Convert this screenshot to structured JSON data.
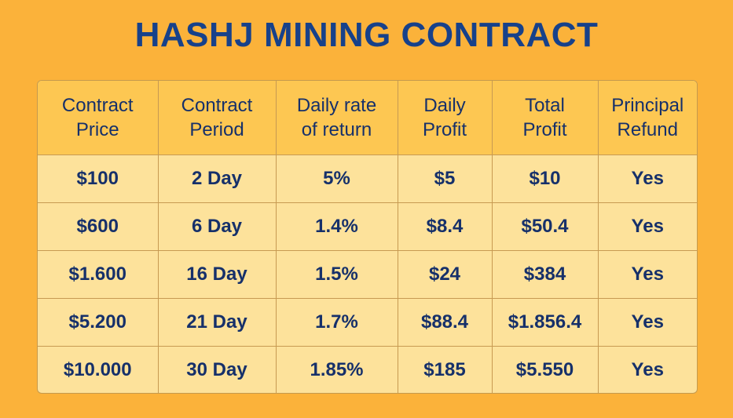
{
  "title": "HASHJ MINING CONTRACT",
  "colors": {
    "background": "#fbb23a",
    "header_row": "#fdc752",
    "body_rows": "#fde29b",
    "text": "#16306a",
    "title": "#17418a"
  },
  "table": {
    "headers": [
      [
        "Contract",
        "Price"
      ],
      [
        "Contract",
        "Period"
      ],
      [
        "Daily rate",
        "of return"
      ],
      [
        "Daily",
        "Profit"
      ],
      [
        "Total",
        "Profit"
      ],
      [
        "Principal",
        "Refund"
      ]
    ],
    "rows": [
      [
        "$100",
        "2 Day",
        "5%",
        "$5",
        "$10",
        "Yes"
      ],
      [
        "$600",
        "6 Day",
        "1.4%",
        "$8.4",
        "$50.4",
        "Yes"
      ],
      [
        "$1.600",
        "16 Day",
        "1.5%",
        "$24",
        "$384",
        "Yes"
      ],
      [
        "$5.200",
        "21 Day",
        "1.7%",
        "$88.4",
        "$1.856.4",
        "Yes"
      ],
      [
        "$10.000",
        "30 Day",
        "1.85%",
        "$185",
        "$5.550",
        "Yes"
      ]
    ]
  }
}
